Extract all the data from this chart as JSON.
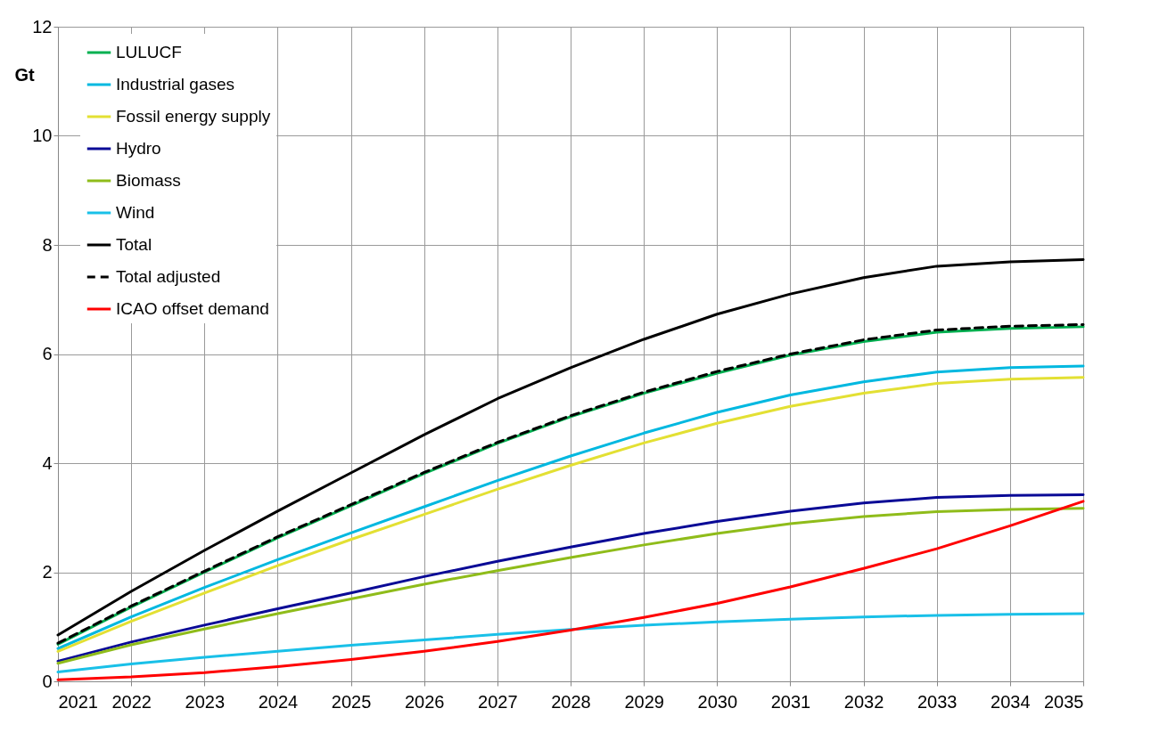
{
  "chart_data": {
    "type": "line",
    "ylabel": "Gt",
    "x": [
      2021,
      2022,
      2023,
      2024,
      2025,
      2026,
      2027,
      2028,
      2029,
      2030,
      2031,
      2032,
      2033,
      2034,
      2035
    ],
    "xlim": [
      2021,
      2035
    ],
    "xticks": [
      2021,
      2022,
      2023,
      2024,
      2025,
      2026,
      2027,
      2028,
      2029,
      2030,
      2031,
      2032,
      2033,
      2034,
      2035
    ],
    "ylim": [
      0,
      12
    ],
    "yticks": [
      0,
      2,
      4,
      6,
      8,
      10,
      12
    ],
    "grid": true,
    "legend": "top left",
    "marker": "none",
    "series": [
      {
        "name": "LULUCF",
        "color": "#00b050",
        "values": [
          0.68,
          1.36,
          2.0,
          2.63,
          3.22,
          3.81,
          4.36,
          4.85,
          5.28,
          5.65,
          5.98,
          6.23,
          6.4,
          6.47,
          6.5
        ]
      },
      {
        "name": "Industrial gases",
        "color": "#00b8e0",
        "values": [
          0.6,
          1.18,
          1.72,
          2.23,
          2.72,
          3.2,
          3.68,
          4.13,
          4.55,
          4.93,
          5.25,
          5.49,
          5.67,
          5.75,
          5.78
        ]
      },
      {
        "name": "Fossil energy supply",
        "color": "#e3e033",
        "values": [
          0.55,
          1.1,
          1.62,
          2.12,
          2.6,
          3.06,
          3.52,
          3.96,
          4.37,
          4.73,
          5.04,
          5.28,
          5.46,
          5.54,
          5.57
        ]
      },
      {
        "name": "Hydro",
        "color": "#0a0a96",
        "values": [
          0.37,
          0.72,
          1.03,
          1.33,
          1.62,
          1.92,
          2.2,
          2.46,
          2.71,
          2.93,
          3.12,
          3.27,
          3.37,
          3.41,
          3.42
        ]
      },
      {
        "name": "Biomass",
        "color": "#8fbc1a",
        "values": [
          0.33,
          0.67,
          0.96,
          1.24,
          1.51,
          1.78,
          2.03,
          2.27,
          2.5,
          2.71,
          2.89,
          3.02,
          3.11,
          3.15,
          3.17
        ]
      },
      {
        "name": "Wind",
        "color": "#19c0e8",
        "values": [
          0.17,
          0.32,
          0.44,
          0.55,
          0.66,
          0.76,
          0.86,
          0.95,
          1.03,
          1.09,
          1.14,
          1.18,
          1.21,
          1.23,
          1.24
        ]
      },
      {
        "name": "Total",
        "color": "#000000",
        "values": [
          0.85,
          1.65,
          2.4,
          3.12,
          3.82,
          4.52,
          5.18,
          5.75,
          6.27,
          6.73,
          7.1,
          7.4,
          7.61,
          7.69,
          7.73
        ]
      },
      {
        "name": "Total adjusted",
        "color": "#000000",
        "line_style": "dashed",
        "values": [
          0.7,
          1.38,
          2.02,
          2.65,
          3.24,
          3.83,
          4.38,
          4.87,
          5.3,
          5.68,
          6.0,
          6.26,
          6.44,
          6.51,
          6.54
        ]
      },
      {
        "name": "ICAO offset demand",
        "color": "#ff0000",
        "values": [
          0.03,
          0.08,
          0.16,
          0.27,
          0.4,
          0.55,
          0.73,
          0.94,
          1.17,
          1.43,
          1.73,
          2.07,
          2.43,
          2.85,
          3.3
        ]
      }
    ]
  }
}
